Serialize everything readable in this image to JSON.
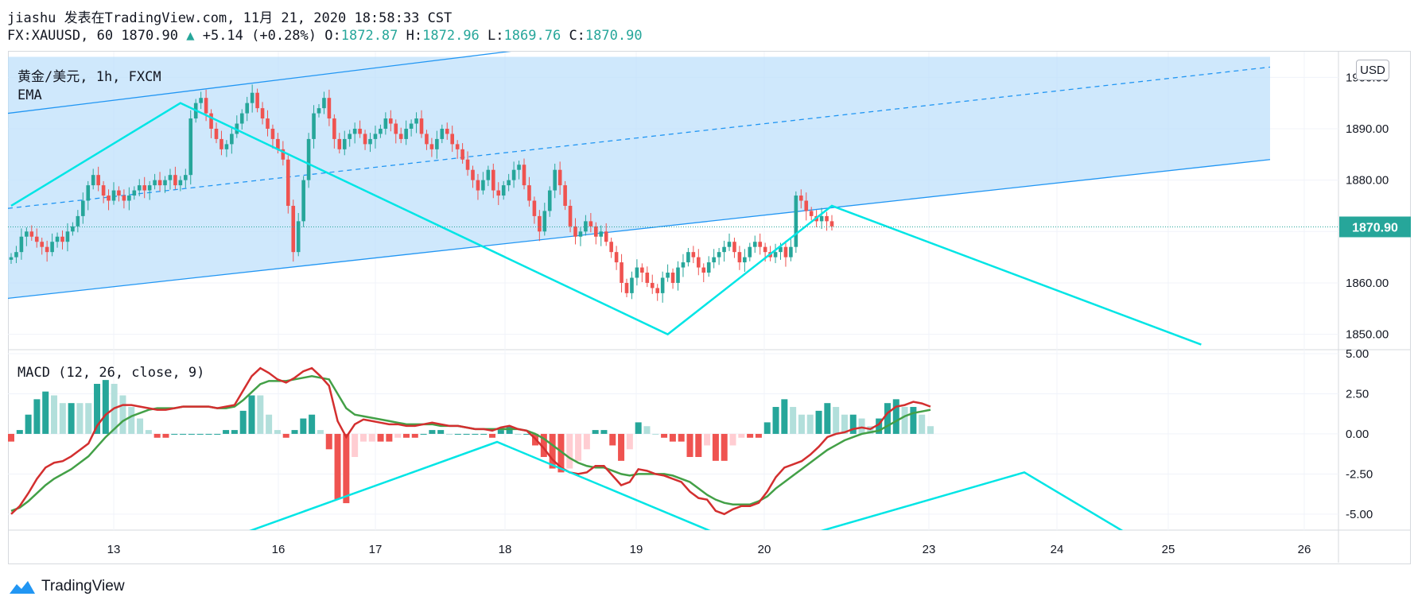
{
  "header": {
    "line1": "jiashu 发表在TradingView.com, 11月 21, 2020 18:58:33 CST",
    "symbol": "FX:XAUUSD, 60",
    "last": "1870.90",
    "change_arrow": "▲",
    "change": "+5.14 (+0.28%)",
    "o_label": "O:",
    "o": "1872.87",
    "h_label": "H:",
    "h": "1872.96",
    "l_label": "L:",
    "l": "1869.76",
    "c_label": "C:",
    "c": "1870.90"
  },
  "price_pane": {
    "title": "黄金/美元, 1h, FXCM",
    "indicator": "EMA",
    "currency_button": "USD",
    "last_price_label": "1870.90"
  },
  "macd_pane": {
    "title": "MACD (12, 26, close, 9)"
  },
  "footer": {
    "brand": "TradingView"
  },
  "colors": {
    "up": "#26a69a",
    "down": "#ef5350",
    "channel_fill": "#bbdefb",
    "channel_line": "#2196f3",
    "zigzag": "#00e5e5",
    "macd_line": "#d32f2f",
    "signal_line": "#43a047",
    "hist_pos_strong": "#26a69a",
    "hist_pos_weak": "#b2dfdb",
    "hist_neg_strong": "#ef5350",
    "hist_neg_weak": "#ffcdd2"
  },
  "chart_data": [
    {
      "type": "candlestick",
      "title": "黄金/美元, 1h, FXCM",
      "x_ticks": [
        "13",
        "16",
        "17",
        "18",
        "19",
        "20",
        "23",
        "24",
        "25",
        "26"
      ],
      "y_ticks": [
        "1850.00",
        "1860.00",
        "1870.00",
        "1880.00",
        "1890.00",
        "1900.00"
      ],
      "ylim": [
        1847,
        1905
      ],
      "last_price": 1870.9,
      "channel": {
        "upper_start": 1893,
        "upper_end": 1906,
        "mid_start": 1874.5,
        "mid_end": 1902,
        "lower_start": 1857,
        "lower_end": 1884
      },
      "closes": [
        1865,
        1866,
        1869,
        1870,
        1869,
        1868,
        1867,
        1866,
        1868,
        1869,
        1868,
        1870,
        1871,
        1873,
        1876,
        1879,
        1881,
        1879,
        1877,
        1876,
        1878,
        1877,
        1876,
        1877,
        1878,
        1879,
        1878,
        1879,
        1880,
        1879,
        1880,
        1881,
        1879,
        1880,
        1881,
        1892,
        1895,
        1896,
        1893,
        1890,
        1888,
        1886,
        1887,
        1889,
        1891,
        1893,
        1895,
        1897,
        1894,
        1892,
        1890,
        1888,
        1886,
        1884,
        1875,
        1866,
        1872,
        1880,
        1888,
        1893,
        1894,
        1896,
        1892,
        1888,
        1886,
        1888,
        1889,
        1890,
        1889,
        1887,
        1888,
        1889,
        1890,
        1892,
        1891,
        1889,
        1888,
        1890,
        1891,
        1892,
        1889,
        1887,
        1886,
        1888,
        1890,
        1889,
        1887,
        1886,
        1884,
        1882,
        1880,
        1878,
        1880,
        1882,
        1878,
        1877,
        1879,
        1880,
        1882,
        1883,
        1879,
        1876,
        1873,
        1870,
        1874,
        1878,
        1882,
        1879,
        1875,
        1871,
        1869,
        1870,
        1872,
        1871,
        1869,
        1870,
        1868,
        1866,
        1864,
        1860,
        1858,
        1861,
        1863,
        1862,
        1860,
        1859,
        1858,
        1861,
        1862,
        1860,
        1863,
        1864,
        1866,
        1865,
        1863,
        1862,
        1864,
        1865,
        1866,
        1867,
        1868,
        1866,
        1864,
        1865,
        1867,
        1868,
        1867,
        1866,
        1865,
        1866,
        1867,
        1865,
        1867,
        1877,
        1876,
        1874,
        1873,
        1872,
        1873,
        1872,
        1871
      ],
      "zigzag_points": [
        {
          "x": 0,
          "y": 1875
        },
        {
          "x": 33,
          "y": 1895
        },
        {
          "x": 128,
          "y": 1850
        },
        {
          "x": 160,
          "y": 1875
        },
        {
          "x": 232,
          "y": 1848
        }
      ]
    },
    {
      "type": "line",
      "title": "MACD (12, 26, close, 9)",
      "y_ticks": [
        "-5.00",
        "-2.50",
        "0.00",
        "2.50",
        "5.00"
      ],
      "ylim": [
        -6,
        5.2
      ],
      "series": [
        {
          "values": [
            -5.0,
            -4.5,
            -3.7,
            -2.8,
            -2.1,
            -1.8,
            -1.7,
            -1.4,
            -1.0,
            -0.6,
            0.5,
            1.2,
            1.6,
            1.8,
            1.8,
            1.7,
            1.6,
            1.5,
            1.5,
            1.6,
            1.7,
            1.7,
            1.7,
            1.7,
            1.6,
            1.7,
            1.8,
            2.7,
            3.6,
            4.1,
            3.8,
            3.4,
            3.2,
            3.5,
            3.9,
            4.1,
            3.6,
            3.0,
            0.8,
            -0.2,
            0.6,
            0.9,
            0.8,
            0.7,
            0.6,
            0.6,
            0.5,
            0.5,
            0.6,
            0.7,
            0.6,
            0.5,
            0.5,
            0.4,
            0.3,
            0.3,
            0.2,
            0.4,
            0.5,
            0.3,
            0.2,
            -0.3,
            -0.9,
            -1.6,
            -2.1,
            -2.4,
            -2.5,
            -2.4,
            -2.0,
            -2.0,
            -2.6,
            -3.2,
            -3.0,
            -2.2,
            -2.3,
            -2.5,
            -2.6,
            -2.8,
            -3.0,
            -3.6,
            -4.0,
            -4.1,
            -4.8,
            -5.0,
            -4.7,
            -4.5,
            -4.5,
            -4.3,
            -3.6,
            -2.7,
            -2.1,
            -1.9,
            -1.7,
            -1.3,
            -0.8,
            -0.2,
            0.0,
            0.1,
            0.3,
            0.4,
            0.3,
            0.6,
            1.3,
            1.7,
            1.8,
            2.0,
            1.9,
            1.7
          ]
        },
        {
          "values": [
            -4.8,
            -4.6,
            -4.2,
            -3.7,
            -3.2,
            -2.8,
            -2.5,
            -2.2,
            -1.8,
            -1.4,
            -0.8,
            -0.2,
            0.3,
            0.8,
            1.1,
            1.3,
            1.5,
            1.6,
            1.6,
            1.6,
            1.7,
            1.7,
            1.7,
            1.7,
            1.6,
            1.6,
            1.7,
            2.1,
            2.6,
            3.1,
            3.3,
            3.3,
            3.3,
            3.4,
            3.5,
            3.6,
            3.5,
            3.4,
            2.5,
            1.6,
            1.2,
            1.1,
            1.0,
            0.9,
            0.8,
            0.7,
            0.6,
            0.6,
            0.6,
            0.6,
            0.5,
            0.5,
            0.5,
            0.4,
            0.3,
            0.3,
            0.3,
            0.3,
            0.3,
            0.3,
            0.2,
            0.0,
            -0.3,
            -0.7,
            -1.1,
            -1.5,
            -1.8,
            -2.0,
            -2.1,
            -2.1,
            -2.3,
            -2.5,
            -2.6,
            -2.5,
            -2.5,
            -2.5,
            -2.5,
            -2.6,
            -2.8,
            -3.0,
            -3.4,
            -3.8,
            -4.1,
            -4.3,
            -4.4,
            -4.4,
            -4.4,
            -4.2,
            -3.9,
            -3.4,
            -3.0,
            -2.6,
            -2.2,
            -1.8,
            -1.4,
            -1.0,
            -0.7,
            -0.4,
            -0.2,
            0.0,
            0.1,
            0.2,
            0.5,
            0.8,
            1.1,
            1.3,
            1.4,
            1.5
          ]
        }
      ],
      "zigzag_points": [
        {
          "x": 0,
          "y": -6.3
        },
        {
          "x": 30,
          "y": -0.5
        },
        {
          "x": 70,
          "y": -6.3
        },
        {
          "x": 90,
          "y": -6.3
        },
        {
          "x": 124,
          "y": -2.4
        },
        {
          "x": 150,
          "y": -6.3
        }
      ]
    }
  ]
}
